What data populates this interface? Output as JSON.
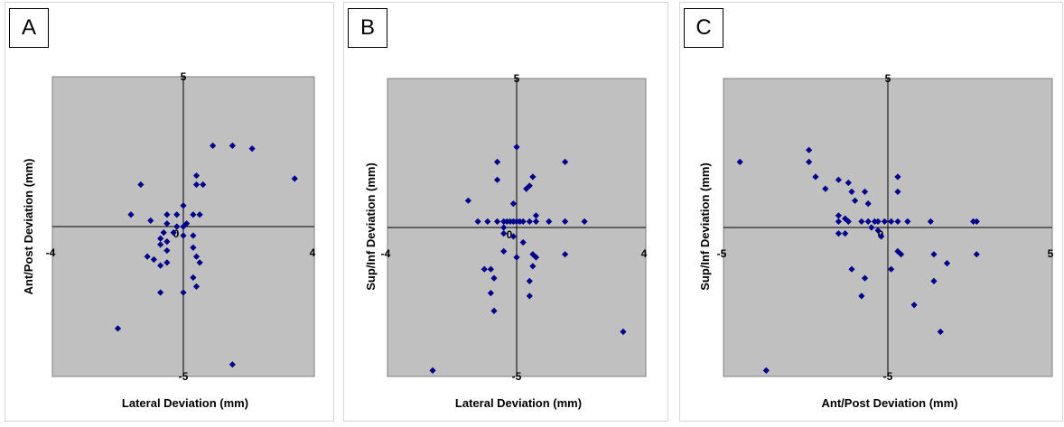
{
  "chart_data": [
    {
      "type": "scatter",
      "panel": "A",
      "xlabel": "Lateral Deviation (mm)",
      "ylabel": "Ant/Post Deviation (mm)",
      "xlim": [
        -4,
        4
      ],
      "ylim": [
        -5,
        5
      ],
      "x_tick_labels": [
        "-4",
        "4"
      ],
      "y_tick_labels": [
        "5",
        "-5"
      ],
      "marker_color": "#00008b",
      "plot_bg": "#c0c0c0",
      "points": [
        [
          0.9,
          2.7
        ],
        [
          1.5,
          2.7
        ],
        [
          2.1,
          2.6
        ],
        [
          3.4,
          1.6
        ],
        [
          -1.3,
          1.4
        ],
        [
          0.4,
          1.7
        ],
        [
          0.4,
          1.4
        ],
        [
          0.6,
          1.4
        ],
        [
          -1.6,
          0.4
        ],
        [
          -1.0,
          0.2
        ],
        [
          0.0,
          0.7
        ],
        [
          0.3,
          0.4
        ],
        [
          0.5,
          0.4
        ],
        [
          -0.5,
          0.4
        ],
        [
          -0.2,
          0.4
        ],
        [
          -0.5,
          0.1
        ],
        [
          -0.2,
          0.0
        ],
        [
          0.0,
          0.0
        ],
        [
          0.1,
          0.1
        ],
        [
          -0.6,
          -0.2
        ],
        [
          -0.3,
          -0.2
        ],
        [
          0.0,
          -0.3
        ],
        [
          0.3,
          -0.3
        ],
        [
          -0.7,
          -0.4
        ],
        [
          -0.5,
          -0.5
        ],
        [
          -0.7,
          -0.6
        ],
        [
          -0.5,
          -0.8
        ],
        [
          0.3,
          -0.7
        ],
        [
          0.4,
          -1.0
        ],
        [
          -1.1,
          -1.0
        ],
        [
          -0.9,
          -1.1
        ],
        [
          -0.7,
          -1.3
        ],
        [
          -0.5,
          -1.2
        ],
        [
          0.5,
          -1.2
        ],
        [
          0.3,
          -1.7
        ],
        [
          0.4,
          -2.0
        ],
        [
          -0.7,
          -2.2
        ],
        [
          0.0,
          -2.2
        ],
        [
          -2.0,
          -3.4
        ],
        [
          1.5,
          -4.6
        ]
      ]
    },
    {
      "type": "scatter",
      "panel": "B",
      "xlabel": "Lateral Deviation (mm)",
      "ylabel": "Sup/Inf Deviation (mm)",
      "xlim": [
        -4,
        4
      ],
      "ylim": [
        -5,
        5
      ],
      "x_tick_labels": [
        "-4",
        "4"
      ],
      "y_tick_labels": [
        "5",
        "-5"
      ],
      "marker_color": "#00008b",
      "plot_bg": "#c0c0c0",
      "points": [
        [
          0.0,
          2.7
        ],
        [
          -0.6,
          2.2
        ],
        [
          1.5,
          2.2
        ],
        [
          -0.6,
          1.6
        ],
        [
          0.5,
          1.7
        ],
        [
          0.4,
          1.4
        ],
        [
          0.3,
          1.3
        ],
        [
          -1.5,
          0.9
        ],
        [
          -0.1,
          0.8
        ],
        [
          -1.2,
          0.2
        ],
        [
          -0.9,
          0.2
        ],
        [
          -0.6,
          0.2
        ],
        [
          -0.4,
          0.2
        ],
        [
          -0.3,
          0.2
        ],
        [
          -0.2,
          0.2
        ],
        [
          -0.1,
          0.2
        ],
        [
          0.0,
          0.2
        ],
        [
          0.1,
          0.2
        ],
        [
          0.2,
          0.2
        ],
        [
          0.4,
          0.2
        ],
        [
          0.6,
          0.4
        ],
        [
          0.6,
          0.2
        ],
        [
          1.0,
          0.2
        ],
        [
          1.5,
          0.2
        ],
        [
          2.1,
          0.2
        ],
        [
          -0.4,
          0.0
        ],
        [
          -0.4,
          -0.2
        ],
        [
          -0.1,
          -0.3
        ],
        [
          0.2,
          -0.5
        ],
        [
          -0.4,
          -0.8
        ],
        [
          0.5,
          -0.9
        ],
        [
          1.5,
          -0.9
        ],
        [
          0.6,
          -1.0
        ],
        [
          0.0,
          -1.0
        ],
        [
          -0.8,
          -1.4
        ],
        [
          -1.0,
          -1.4
        ],
        [
          -0.7,
          -1.7
        ],
        [
          0.5,
          -1.3
        ],
        [
          0.4,
          -1.8
        ],
        [
          0.4,
          -2.3
        ],
        [
          -0.8,
          -2.2
        ],
        [
          -0.7,
          -2.8
        ],
        [
          3.3,
          -3.5
        ],
        [
          -2.6,
          -4.8
        ]
      ]
    },
    {
      "type": "scatter",
      "panel": "C",
      "xlabel": "Ant/Post Deviation (mm)",
      "ylabel": "Sup/Inf Deviation (mm)",
      "xlim": [
        -5,
        5
      ],
      "ylim": [
        -5,
        5
      ],
      "x_tick_labels": [
        "-5",
        "5"
      ],
      "y_tick_labels": [
        "5",
        "-5"
      ],
      "marker_color": "#00008b",
      "plot_bg": "#c0c0c0",
      "points": [
        [
          -4.5,
          2.2
        ],
        [
          -2.4,
          2.6
        ],
        [
          -2.4,
          2.2
        ],
        [
          -2.2,
          1.7
        ],
        [
          -1.9,
          1.3
        ],
        [
          -1.5,
          1.6
        ],
        [
          -1.2,
          1.5
        ],
        [
          -1.1,
          1.2
        ],
        [
          0.3,
          1.7
        ],
        [
          -0.7,
          1.2
        ],
        [
          -1.0,
          0.9
        ],
        [
          -0.6,
          0.8
        ],
        [
          0.3,
          1.2
        ],
        [
          -1.5,
          0.4
        ],
        [
          -1.3,
          0.3
        ],
        [
          -1.5,
          0.2
        ],
        [
          -1.2,
          0.2
        ],
        [
          -0.8,
          0.2
        ],
        [
          -0.6,
          0.2
        ],
        [
          -0.4,
          0.2
        ],
        [
          -0.3,
          0.2
        ],
        [
          -0.1,
          0.2
        ],
        [
          0.1,
          0.2
        ],
        [
          0.3,
          0.2
        ],
        [
          0.6,
          0.2
        ],
        [
          1.3,
          0.2
        ],
        [
          2.6,
          0.2
        ],
        [
          2.7,
          0.2
        ],
        [
          -0.5,
          0.0
        ],
        [
          -0.3,
          -0.1
        ],
        [
          -1.5,
          -0.2
        ],
        [
          -1.3,
          -0.2
        ],
        [
          -0.2,
          -0.3
        ],
        [
          0.3,
          -0.8
        ],
        [
          0.4,
          -0.9
        ],
        [
          1.4,
          -0.9
        ],
        [
          2.7,
          -0.9
        ],
        [
          1.8,
          -1.2
        ],
        [
          -1.1,
          -1.4
        ],
        [
          0.1,
          -1.4
        ],
        [
          -0.7,
          -1.7
        ],
        [
          1.4,
          -1.8
        ],
        [
          -0.8,
          -2.3
        ],
        [
          0.8,
          -2.6
        ],
        [
          1.6,
          -3.5
        ],
        [
          -3.7,
          -4.8
        ]
      ]
    }
  ]
}
